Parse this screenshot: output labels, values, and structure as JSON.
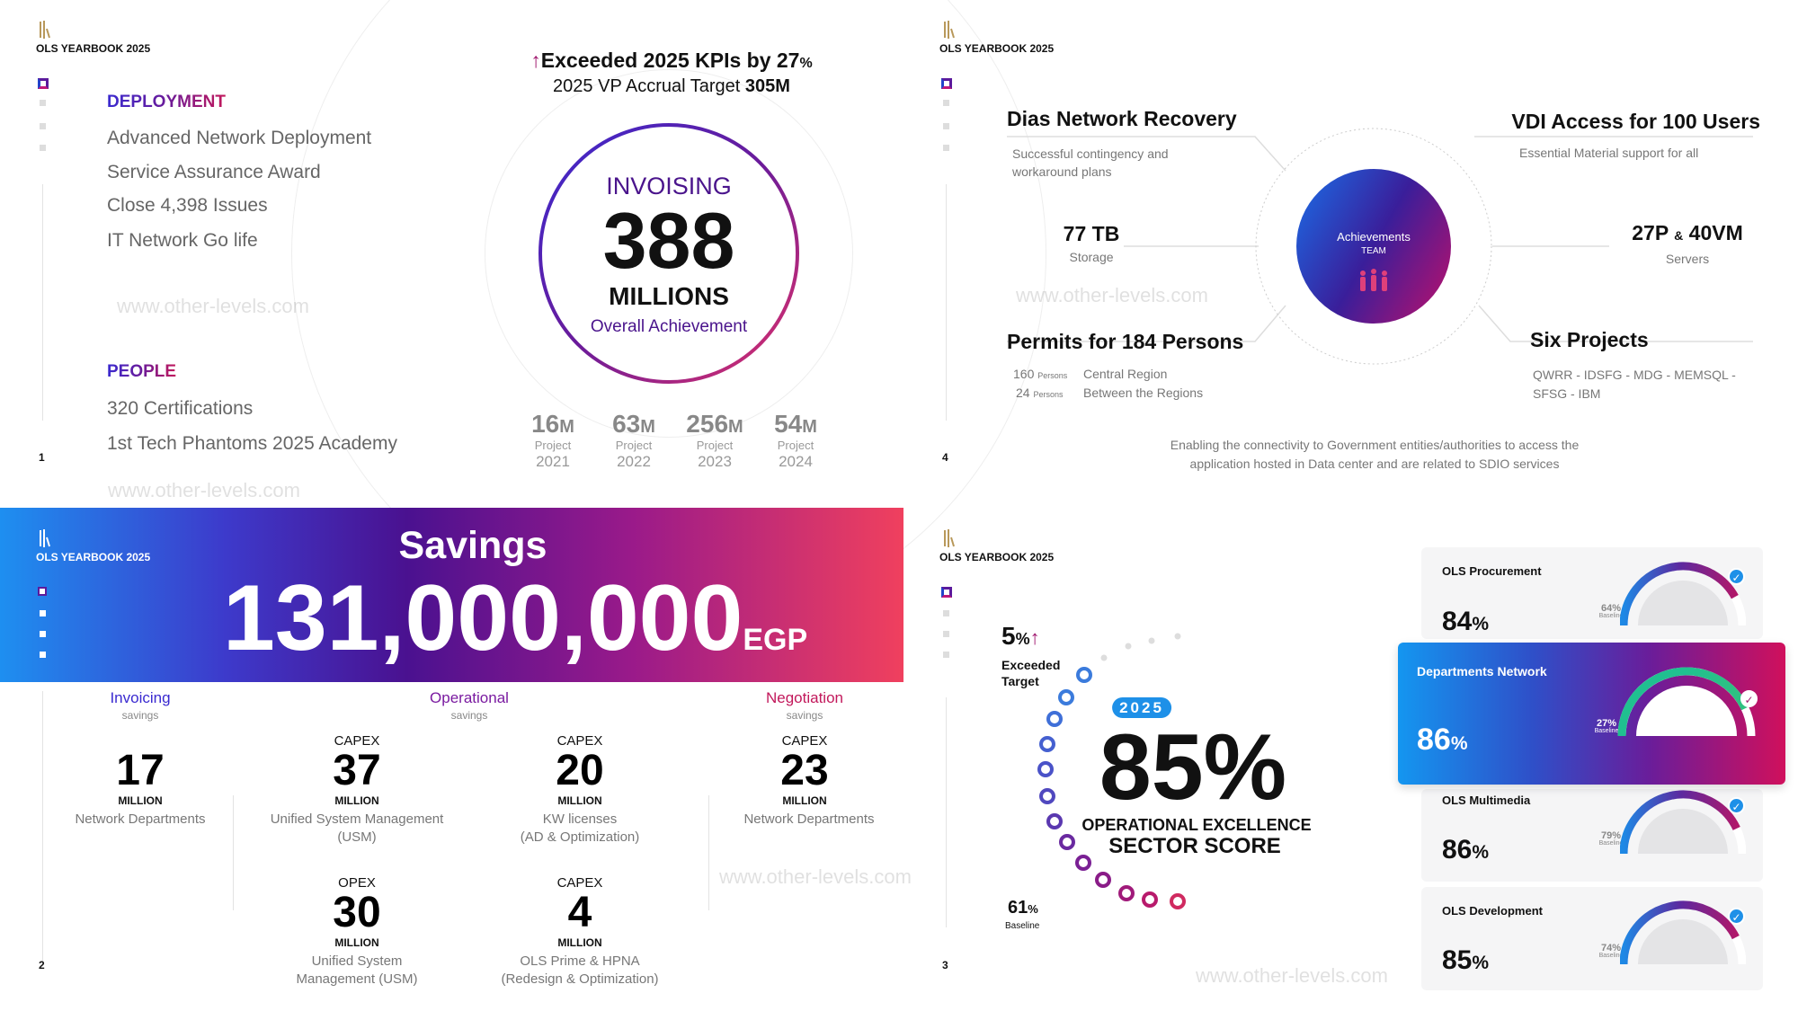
{
  "header_label": "OLS YEARBOOK 2025",
  "watermark": "www.other-levels.com",
  "slide1": {
    "page": "1",
    "deployment_title": "DEPLOYMENT",
    "deployment_items": [
      "Advanced Network Deployment",
      "Service Assurance Award",
      "Close 4,398 Issues",
      "IT Network Go life"
    ],
    "people_title": "PEOPLE",
    "people_items": [
      "320 Certifications",
      "1st Tech Phantoms 2025 Academy"
    ],
    "kpi_line": "Exceeded 2025 KPIs by 27",
    "kpi_pct": "%",
    "target_line": "2025 VP Accrual Target ",
    "target_value": "305M",
    "circle_title": "INVOISING",
    "circle_value": "388",
    "circle_unit": "MILLIONS",
    "circle_caption": "Overall Achievement",
    "projects": [
      {
        "value": "16",
        "unit": "M",
        "label": "Project",
        "year": "2021"
      },
      {
        "value": "63",
        "unit": "M",
        "label": "Project",
        "year": "2022"
      },
      {
        "value": "256",
        "unit": "M",
        "label": "Project",
        "year": "2023"
      },
      {
        "value": "54",
        "unit": "M",
        "label": "Project",
        "year": "2024"
      }
    ]
  },
  "slide4": {
    "page": "4",
    "dias_title": "Dias Network Recovery",
    "dias_desc1": "Successful contingency and",
    "dias_desc2": "workaround plans",
    "vdi_title": "VDI Access for 100 Users",
    "vdi_desc": "Essential Material support for all",
    "storage_value": "77 TB",
    "storage_label": "Storage",
    "servers_a": "27P",
    "servers_amp": "&",
    "servers_b": "40VM",
    "servers_label": "Servers",
    "center_title": "Achievements",
    "center_sub": "TEAM",
    "permits_title": "Permits for 184 Persons",
    "permits": [
      {
        "n": "160",
        "unit": "Persons",
        "desc": "Central Region"
      },
      {
        "n": "24",
        "unit": "Persons",
        "desc": "Between the Regions"
      }
    ],
    "six_title": "Six Projects",
    "six_desc1": "QWRR - IDSFG - MDG - MEMSQL -",
    "six_desc2": "SFSG - IBM",
    "footer1": "Enabling the connectivity to Government entities/authorities to access the",
    "footer2": "application hosted in Data center and are related to SDIO services"
  },
  "slide2": {
    "page": "2",
    "title": "Savings",
    "amount": "131,000,000",
    "currency": "EGP",
    "categories": [
      {
        "name": "Invoicing",
        "sub": "savings",
        "color": "#3a2ad0"
      },
      {
        "name": "Operational",
        "sub": "savings",
        "color": "#7a1aa0"
      },
      {
        "name": "Negotiation",
        "sub": "savings",
        "color": "#c2185b"
      }
    ],
    "items": [
      {
        "type": "",
        "value": "17",
        "unit": "MILLION",
        "desc1": "Network Departments",
        "desc2": ""
      },
      {
        "type": "CAPEX",
        "value": "37",
        "unit": "MILLION",
        "desc1": "Unified System Management",
        "desc2": "(USM)"
      },
      {
        "type": "CAPEX",
        "value": "20",
        "unit": "MILLION",
        "desc1": "KW licenses",
        "desc2": "(AD & Optimization)"
      },
      {
        "type": "CAPEX",
        "value": "23",
        "unit": "MILLION",
        "desc1": "Network Departments",
        "desc2": ""
      },
      {
        "type": "OPEX",
        "value": "30",
        "unit": "MILLION",
        "desc1": "Unified System",
        "desc2": "Management (USM)"
      },
      {
        "type": "CAPEX",
        "value": "4",
        "unit": "MILLION",
        "desc1": "OLS Prime & HPNA",
        "desc2": "(Redesign & Optimization)"
      }
    ]
  },
  "slide3": {
    "page": "3",
    "exceeded_value": "5",
    "exceeded_pct": "%",
    "exceeded_l1": "Exceeded",
    "exceeded_l2": "Target",
    "year_badge": "2025",
    "score": "85%",
    "score_l1": "OPERATIONAL EXCELLENCE",
    "score_l2": "SECTOR SCORE",
    "baseline_value": "61",
    "baseline_pct": "%",
    "baseline_label": "Baseline",
    "cards": [
      {
        "title": "OLS Procurement",
        "value": "84",
        "pct": "%",
        "baseline": "64%",
        "baseline_label": "Baseline",
        "score": 84,
        "highlight": false
      },
      {
        "title": "Departments Network",
        "value": "86",
        "pct": "%",
        "baseline": "27%",
        "baseline_label": "Baseline",
        "score": 86,
        "highlight": true
      },
      {
        "title": "OLS Multimedia",
        "value": "86",
        "pct": "%",
        "baseline": "79%",
        "baseline_label": "Baseline",
        "score": 86,
        "highlight": false
      },
      {
        "title": "OLS Development",
        "value": "85",
        "pct": "%",
        "baseline": "74%",
        "baseline_label": "Baseline",
        "score": 85,
        "highlight": false
      }
    ]
  }
}
